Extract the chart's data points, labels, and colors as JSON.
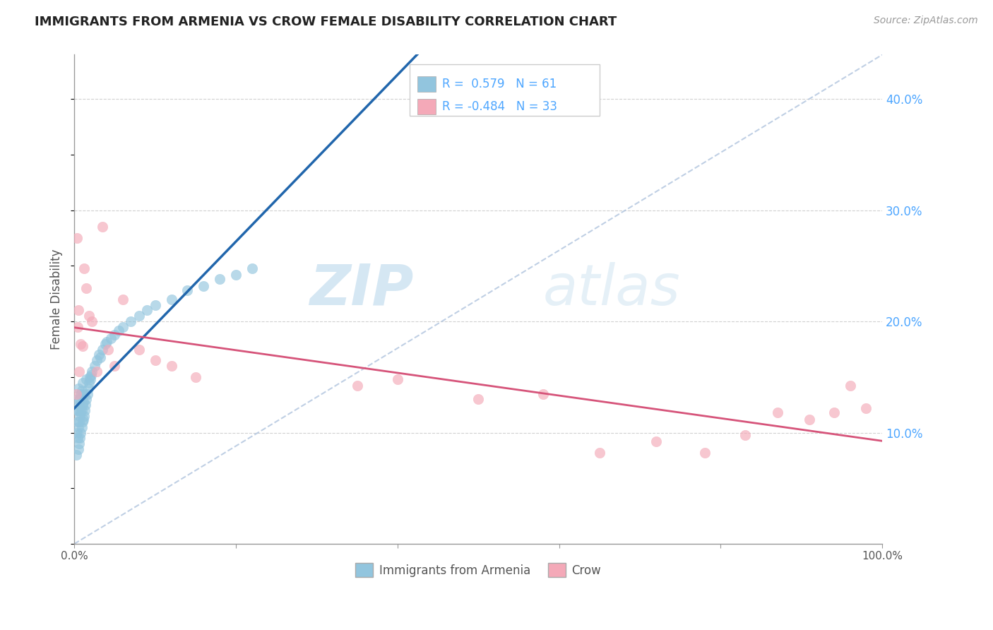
{
  "title": "IMMIGRANTS FROM ARMENIA VS CROW FEMALE DISABILITY CORRELATION CHART",
  "source": "Source: ZipAtlas.com",
  "ylabel_left": "Female Disability",
  "legend_labels": [
    "Immigrants from Armenia",
    "Crow"
  ],
  "r_blue": 0.579,
  "n_blue": 61,
  "r_pink": -0.484,
  "n_pink": 33,
  "blue_color": "#92c5de",
  "pink_color": "#f4a9b8",
  "blue_line_color": "#2166ac",
  "pink_line_color": "#d6547a",
  "right_axis_color": "#4da6ff",
  "watermark_zip": "ZIP",
  "watermark_atlas": "atlas",
  "xlim": [
    0.0,
    1.0
  ],
  "ylim": [
    0.0,
    0.44
  ],
  "yticks_right": [
    0.1,
    0.2,
    0.3,
    0.4
  ],
  "ytick_right_labels": [
    "10.0%",
    "20.0%",
    "30.0%",
    "40.0%"
  ],
  "blue_scatter_x": [
    0.002,
    0.003,
    0.003,
    0.004,
    0.004,
    0.004,
    0.005,
    0.005,
    0.005,
    0.005,
    0.006,
    0.006,
    0.006,
    0.007,
    0.007,
    0.007,
    0.008,
    0.008,
    0.008,
    0.009,
    0.009,
    0.009,
    0.01,
    0.01,
    0.01,
    0.011,
    0.011,
    0.012,
    0.012,
    0.013,
    0.014,
    0.015,
    0.015,
    0.016,
    0.017,
    0.018,
    0.019,
    0.02,
    0.021,
    0.022,
    0.025,
    0.028,
    0.03,
    0.032,
    0.035,
    0.038,
    0.04,
    0.045,
    0.05,
    0.055,
    0.06,
    0.07,
    0.08,
    0.09,
    0.1,
    0.12,
    0.14,
    0.16,
    0.18,
    0.2,
    0.22
  ],
  "blue_scatter_y": [
    0.08,
    0.1,
    0.12,
    0.095,
    0.11,
    0.13,
    0.085,
    0.105,
    0.12,
    0.14,
    0.09,
    0.11,
    0.125,
    0.095,
    0.115,
    0.13,
    0.1,
    0.118,
    0.135,
    0.105,
    0.12,
    0.138,
    0.11,
    0.125,
    0.145,
    0.112,
    0.128,
    0.115,
    0.135,
    0.12,
    0.125,
    0.13,
    0.148,
    0.135,
    0.14,
    0.145,
    0.15,
    0.148,
    0.152,
    0.155,
    0.16,
    0.165,
    0.17,
    0.168,
    0.175,
    0.18,
    0.182,
    0.185,
    0.188,
    0.192,
    0.195,
    0.2,
    0.205,
    0.21,
    0.215,
    0.22,
    0.228,
    0.232,
    0.238,
    0.242,
    0.248
  ],
  "pink_scatter_x": [
    0.002,
    0.003,
    0.004,
    0.005,
    0.006,
    0.008,
    0.01,
    0.012,
    0.015,
    0.018,
    0.022,
    0.028,
    0.035,
    0.042,
    0.05,
    0.06,
    0.08,
    0.1,
    0.12,
    0.15,
    0.35,
    0.4,
    0.5,
    0.58,
    0.65,
    0.72,
    0.78,
    0.83,
    0.87,
    0.91,
    0.94,
    0.96,
    0.98
  ],
  "pink_scatter_y": [
    0.135,
    0.275,
    0.195,
    0.21,
    0.155,
    0.18,
    0.178,
    0.248,
    0.23,
    0.205,
    0.2,
    0.155,
    0.285,
    0.175,
    0.16,
    0.22,
    0.175,
    0.165,
    0.16,
    0.15,
    0.142,
    0.148,
    0.13,
    0.135,
    0.082,
    0.092,
    0.082,
    0.098,
    0.118,
    0.112,
    0.118,
    0.142,
    0.122
  ]
}
